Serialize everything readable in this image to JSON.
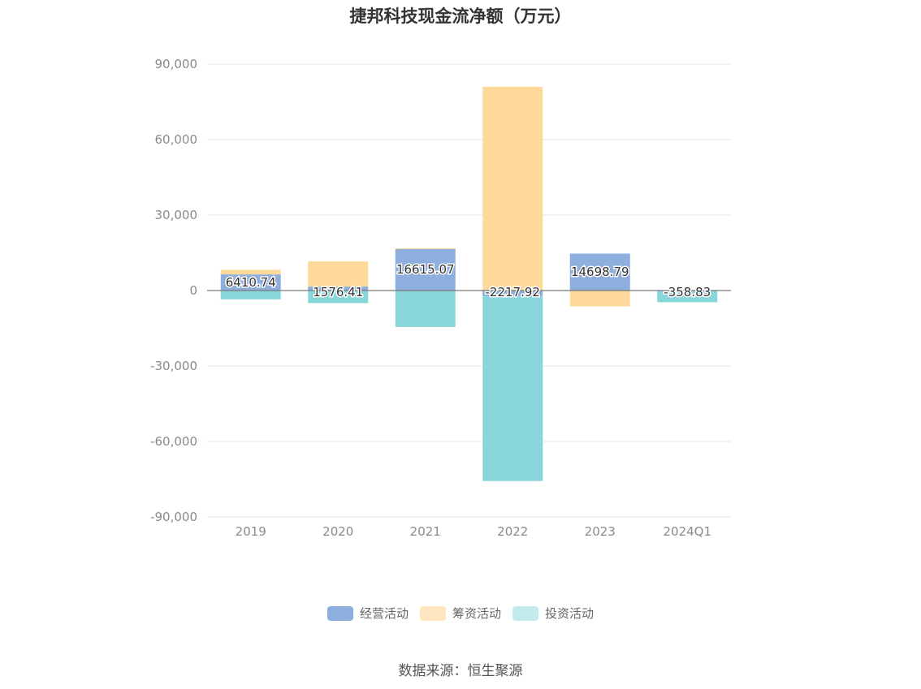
{
  "chart_data": {
    "type": "bar",
    "stacked": true,
    "title": "捷邦科技现金流净额（万元）",
    "categories": [
      "2019",
      "2020",
      "2021",
      "2022",
      "2023",
      "2024Q1"
    ],
    "series": [
      {
        "name": "经营活动",
        "color": "#8eaedd",
        "values": [
          6410.74,
          1576.41,
          16615.07,
          -2217.92,
          14698.79,
          -358.83
        ]
      },
      {
        "name": "筹资活动",
        "color": "#ffd99a",
        "values": [
          1800,
          10000,
          200,
          81000,
          -6300,
          0
        ]
      },
      {
        "name": "投资活动",
        "color": "#88d5da",
        "values": [
          -3500,
          -5000,
          -14500,
          -73500,
          0,
          -4300
        ]
      }
    ],
    "data_labels": [
      "6410.74",
      "1576.41",
      "16615.07",
      "-2217.92",
      "14698.79",
      "-358.83"
    ],
    "ylim": [
      -90000,
      90000
    ],
    "yticks": [
      90000,
      60000,
      30000,
      0,
      -30000,
      -60000,
      -90000
    ],
    "ytick_labels": [
      "90,000",
      "60,000",
      "30,000",
      "0",
      "-30,000",
      "-60,000",
      "-90,000"
    ],
    "grid": true,
    "legend_position": "bottom",
    "legend_colors": [
      "#8eaedd",
      "#ffe6c1",
      "#c2ebee"
    ]
  },
  "source_text": "数据来源：恒生聚源"
}
